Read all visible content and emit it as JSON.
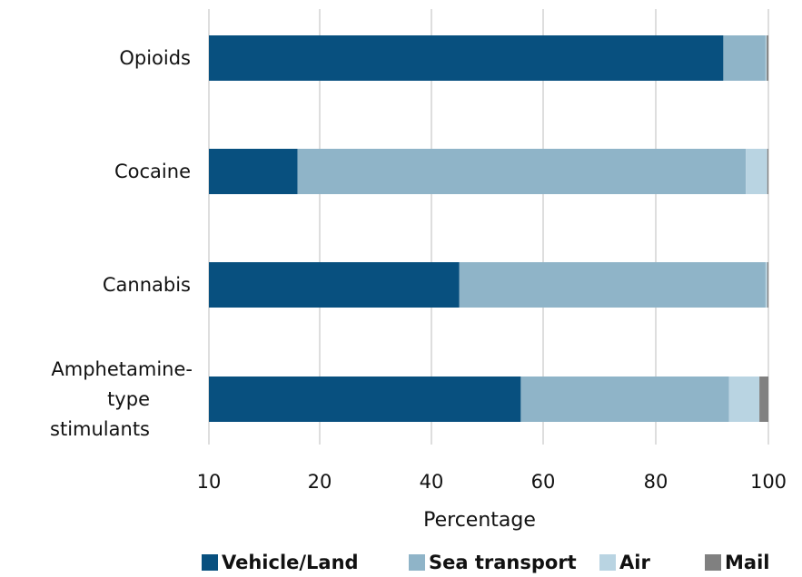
{
  "chart_data": {
    "type": "bar",
    "orientation": "horizontal",
    "stacked": true,
    "categories": [
      "Opioids",
      "Cocaine",
      "Cannabis",
      "Amphetamine-type stimulants"
    ],
    "category_lines": [
      [
        "Opioids"
      ],
      [
        "Cocaine"
      ],
      [
        "Cannabis"
      ],
      [
        "Amphetamine-",
        "type",
        "stimulants"
      ]
    ],
    "xlabel": "Percentage",
    "tick_values": [
      10,
      20,
      40,
      60,
      80,
      100
    ],
    "tick_labels": [
      "10",
      "20",
      "40",
      "60",
      "80",
      "100"
    ],
    "grid": true,
    "legend_position": "bottom",
    "series": [
      {
        "name": "Vehicle/Land",
        "color": "#08507f",
        "values": [
          92,
          8,
          45,
          56
        ]
      },
      {
        "name": "Sea transport",
        "color": "#8fb4c8",
        "values": [
          7.5,
          88,
          54.5,
          37
        ]
      },
      {
        "name": "Air",
        "color": "#b9d4e2",
        "values": [
          0.2,
          3.8,
          0.3,
          5.4
        ]
      },
      {
        "name": "Mail",
        "color": "#808080",
        "values": [
          0.3,
          0.2,
          0.2,
          1.6
        ]
      }
    ]
  }
}
